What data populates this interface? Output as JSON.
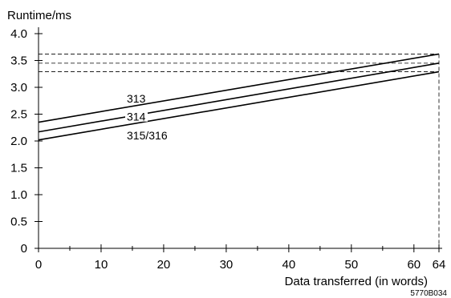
{
  "chart_data": {
    "type": "line",
    "ylabel": "Runtime/ms",
    "xlabel": "Data transferred (in words)",
    "figure_id": "5770B034",
    "xlim": [
      0,
      64
    ],
    "ylim": [
      0,
      4.0
    ],
    "x_ticks": [
      0,
      10,
      20,
      30,
      40,
      50,
      60,
      64
    ],
    "x_tick_labels": [
      "0",
      "10",
      "20",
      "30",
      "40",
      "50",
      "60",
      "64"
    ],
    "y_ticks": [
      0,
      0.5,
      1.0,
      1.5,
      2.0,
      2.5,
      3.0,
      3.5,
      4.0
    ],
    "y_tick_labels": [
      "0",
      "0.5",
      "1.0",
      "1.5",
      "2.0",
      "2.5",
      "3.0",
      "3.5",
      "4.0"
    ],
    "grid": false,
    "reference_lines": "dashed horizontals at the end values of each line and a dashed vertical at x = 64",
    "series": [
      {
        "name": "313",
        "x": [
          0,
          64
        ],
        "values": [
          2.35,
          3.62
        ]
      },
      {
        "name": "314",
        "x": [
          0,
          64
        ],
        "values": [
          2.17,
          3.45
        ]
      },
      {
        "name": "315/316",
        "x": [
          0,
          64
        ],
        "values": [
          2.02,
          3.29
        ]
      }
    ]
  }
}
